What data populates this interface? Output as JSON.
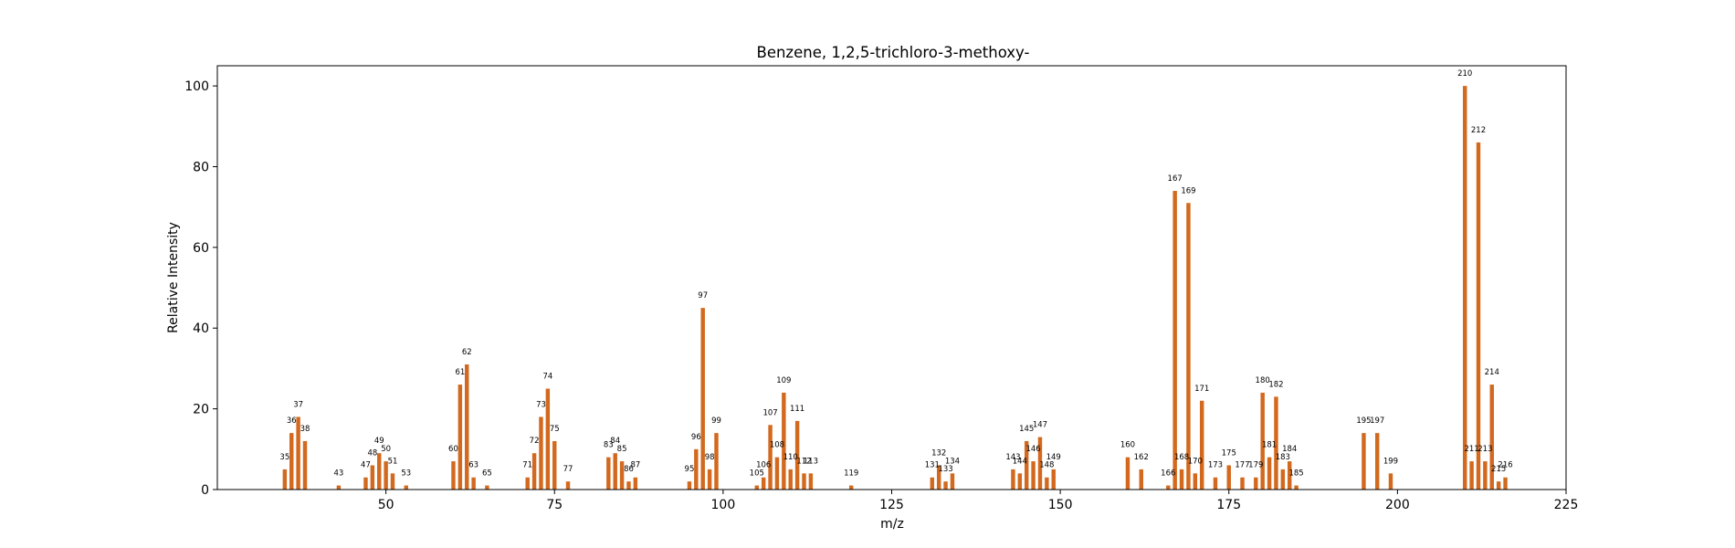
{
  "chart_data": {
    "type": "bar",
    "title": "Benzene, 1,2,5-trichloro-3-methoxy-",
    "xlabel": "m/z",
    "ylabel": "Relative Intensity",
    "xlim": [
      25,
      225
    ],
    "ylim": [
      0,
      105
    ],
    "xticks": [
      50,
      75,
      100,
      125,
      150,
      175,
      200,
      225
    ],
    "yticks": [
      0,
      20,
      40,
      60,
      80,
      100
    ],
    "bar_color": "#d2691e",
    "grid": false,
    "legend": "none",
    "points": [
      {
        "x": 35,
        "y": 5
      },
      {
        "x": 36,
        "y": 14
      },
      {
        "x": 37,
        "y": 18
      },
      {
        "x": 38,
        "y": 12
      },
      {
        "x": 43,
        "y": 1
      },
      {
        "x": 47,
        "y": 3
      },
      {
        "x": 48,
        "y": 6
      },
      {
        "x": 49,
        "y": 9
      },
      {
        "x": 50,
        "y": 7
      },
      {
        "x": 51,
        "y": 4
      },
      {
        "x": 53,
        "y": 1
      },
      {
        "x": 60,
        "y": 7
      },
      {
        "x": 61,
        "y": 26
      },
      {
        "x": 62,
        "y": 31
      },
      {
        "x": 63,
        "y": 3
      },
      {
        "x": 65,
        "y": 1
      },
      {
        "x": 71,
        "y": 3
      },
      {
        "x": 72,
        "y": 9
      },
      {
        "x": 73,
        "y": 18
      },
      {
        "x": 74,
        "y": 25
      },
      {
        "x": 75,
        "y": 12
      },
      {
        "x": 77,
        "y": 2
      },
      {
        "x": 83,
        "y": 8
      },
      {
        "x": 84,
        "y": 9
      },
      {
        "x": 85,
        "y": 7
      },
      {
        "x": 86,
        "y": 2
      },
      {
        "x": 87,
        "y": 3
      },
      {
        "x": 95,
        "y": 2
      },
      {
        "x": 96,
        "y": 10
      },
      {
        "x": 97,
        "y": 45
      },
      {
        "x": 98,
        "y": 5
      },
      {
        "x": 99,
        "y": 14
      },
      {
        "x": 105,
        "y": 1
      },
      {
        "x": 106,
        "y": 3
      },
      {
        "x": 107,
        "y": 16
      },
      {
        "x": 108,
        "y": 8
      },
      {
        "x": 109,
        "y": 24
      },
      {
        "x": 110,
        "y": 5
      },
      {
        "x": 111,
        "y": 17
      },
      {
        "x": 112,
        "y": 4
      },
      {
        "x": 113,
        "y": 4
      },
      {
        "x": 119,
        "y": 1
      },
      {
        "x": 131,
        "y": 3
      },
      {
        "x": 132,
        "y": 6
      },
      {
        "x": 133,
        "y": 2
      },
      {
        "x": 134,
        "y": 4
      },
      {
        "x": 143,
        "y": 5
      },
      {
        "x": 144,
        "y": 4
      },
      {
        "x": 145,
        "y": 12
      },
      {
        "x": 146,
        "y": 7
      },
      {
        "x": 147,
        "y": 13
      },
      {
        "x": 148,
        "y": 3
      },
      {
        "x": 149,
        "y": 5
      },
      {
        "x": 160,
        "y": 8
      },
      {
        "x": 162,
        "y": 5
      },
      {
        "x": 166,
        "y": 1
      },
      {
        "x": 167,
        "y": 74
      },
      {
        "x": 168,
        "y": 5
      },
      {
        "x": 169,
        "y": 71
      },
      {
        "x": 170,
        "y": 4
      },
      {
        "x": 171,
        "y": 22
      },
      {
        "x": 173,
        "y": 3
      },
      {
        "x": 175,
        "y": 6
      },
      {
        "x": 177,
        "y": 3
      },
      {
        "x": 179,
        "y": 3
      },
      {
        "x": 180,
        "y": 24
      },
      {
        "x": 181,
        "y": 8
      },
      {
        "x": 182,
        "y": 23
      },
      {
        "x": 183,
        "y": 5
      },
      {
        "x": 184,
        "y": 7
      },
      {
        "x": 185,
        "y": 1
      },
      {
        "x": 195,
        "y": 14
      },
      {
        "x": 197,
        "y": 14
      },
      {
        "x": 199,
        "y": 4
      },
      {
        "x": 210,
        "y": 100
      },
      {
        "x": 211,
        "y": 7
      },
      {
        "x": 212,
        "y": 86
      },
      {
        "x": 213,
        "y": 7
      },
      {
        "x": 214,
        "y": 26
      },
      {
        "x": 215,
        "y": 2
      },
      {
        "x": 216,
        "y": 3
      }
    ]
  }
}
